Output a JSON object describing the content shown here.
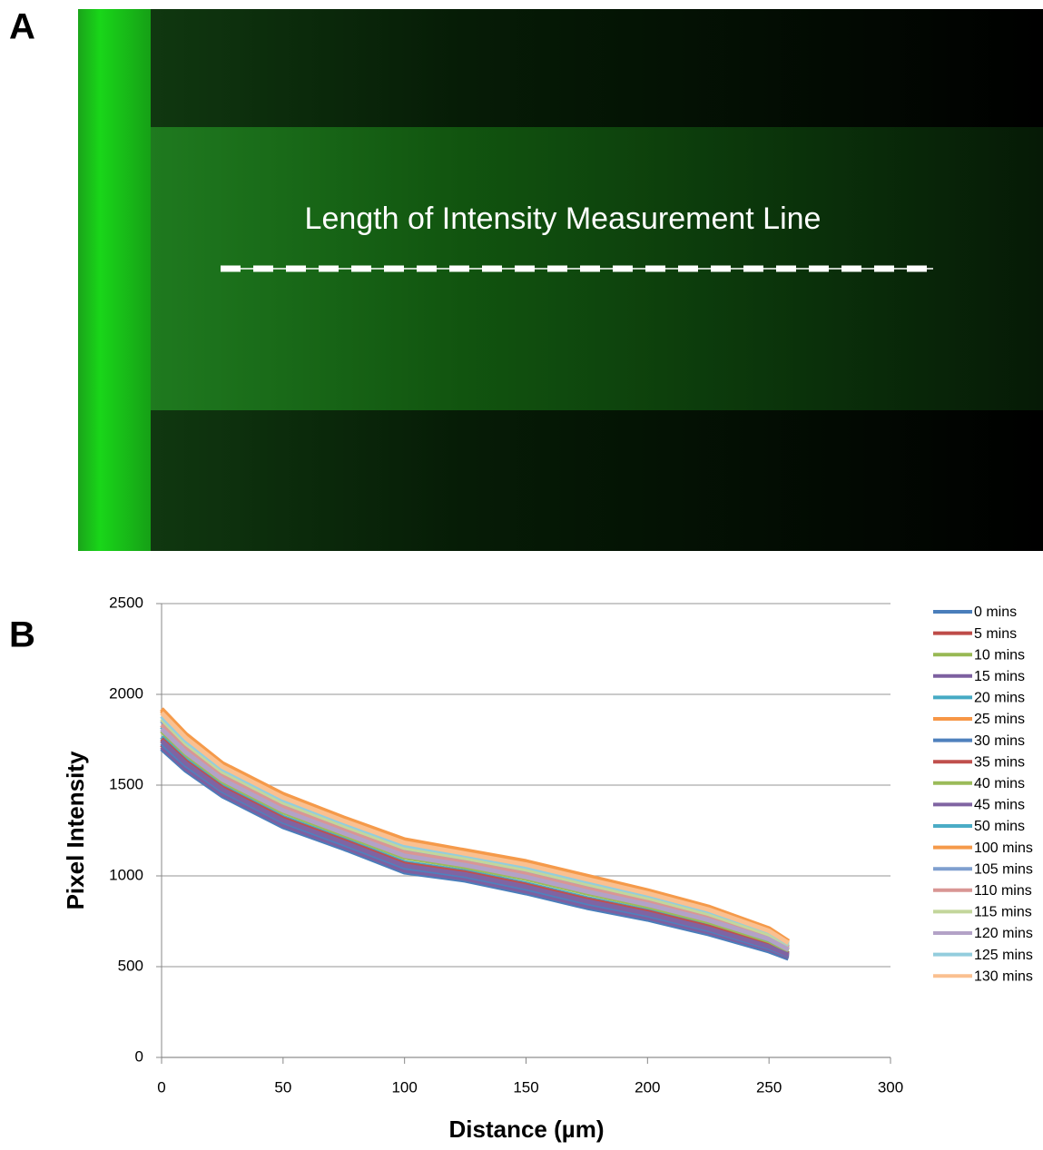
{
  "panel_a": {
    "label": "A",
    "annotation": "Length of Intensity Measurement Line"
  },
  "chart_data": {
    "type": "line",
    "panel_label": "B",
    "xlabel": "Distance (µm)",
    "ylabel": "Pixel Intensity",
    "xlim": [
      0,
      300
    ],
    "xticks": [
      0,
      50,
      100,
      150,
      200,
      250,
      300
    ],
    "ylim": [
      0,
      2500
    ],
    "yticks": [
      0,
      500,
      1000,
      1500,
      2000,
      2500
    ],
    "grid": true,
    "legend": "right",
    "x": [
      0,
      10,
      25,
      50,
      75,
      100,
      125,
      150,
      175,
      200,
      225,
      250,
      258
    ],
    "series": [
      {
        "name": "0 mins",
        "color": "#4a7ebb",
        "values": [
          1700,
          1580,
          1440,
          1270,
          1150,
          1020,
          975,
          905,
          825,
          760,
          680,
          585,
          545
        ]
      },
      {
        "name": "5 mins",
        "color": "#be4b48",
        "values": [
          1722,
          1600,
          1458,
          1288,
          1167,
          1038,
          991,
          922,
          842,
          776,
          695,
          597,
          554
        ]
      },
      {
        "name": "10 mins",
        "color": "#98b954",
        "values": [
          1744,
          1620,
          1476,
          1306,
          1184,
          1056,
          1008,
          940,
          860,
          792,
          710,
          610,
          564
        ]
      },
      {
        "name": "15 mins",
        "color": "#7d60a0",
        "values": [
          1710,
          1590,
          1450,
          1280,
          1160,
          1030,
          985,
          915,
          835,
          770,
          690,
          595,
          555
        ]
      },
      {
        "name": "20 mins",
        "color": "#46aac4",
        "values": [
          1766,
          1640,
          1494,
          1324,
          1201,
          1074,
          1025,
          957,
          877,
          808,
          725,
          622,
          573
        ]
      },
      {
        "name": "25 mins",
        "color": "#f79646",
        "values": [
          1910,
          1770,
          1612,
          1442,
          1313,
          1192,
          1133,
          1072,
          992,
          914,
          825,
          707,
          637
        ]
      },
      {
        "name": "30 mins",
        "color": "#4f81bd",
        "values": [
          1730,
          1610,
          1468,
          1298,
          1175,
          1047,
          1000,
          931,
          851,
          784,
          703,
          604,
          560
        ]
      },
      {
        "name": "35 mins",
        "color": "#c0504d",
        "values": [
          1754,
          1630,
          1486,
          1316,
          1194,
          1066,
          1018,
          950,
          870,
          802,
          720,
          620,
          570
        ]
      },
      {
        "name": "40 mins",
        "color": "#9bbb59",
        "values": [
          1799,
          1670,
          1521,
          1351,
          1226,
          1101,
          1049,
          984,
          904,
          832,
          747,
          641,
          588
        ]
      },
      {
        "name": "45 mins",
        "color": "#8064a2",
        "values": [
          1744,
          1620,
          1476,
          1306,
          1184,
          1056,
          1008,
          940,
          860,
          792,
          710,
          610,
          564
        ]
      },
      {
        "name": "50 mins",
        "color": "#4bacc6",
        "values": [
          1822,
          1690,
          1538,
          1368,
          1242,
          1118,
          1064,
          1000,
          920,
          846,
          760,
          650,
          595
        ]
      },
      {
        "name": "100 mins",
        "color": "#f59a4a",
        "values": [
          1920,
          1780,
          1620,
          1450,
          1320,
          1200,
          1140,
          1080,
          1000,
          920,
          830,
          710,
          640
        ]
      },
      {
        "name": "105 mins",
        "color": "#7f9fcf",
        "values": [
          1855,
          1720,
          1565,
          1395,
          1267,
          1145,
          1089,
          1026,
          946,
          870,
          782,
          669,
          609
        ]
      },
      {
        "name": "110 mins",
        "color": "#d99694",
        "values": [
          1832,
          1700,
          1548,
          1378,
          1252,
          1128,
          1074,
          1010,
          930,
          856,
          770,
          660,
          602
        ]
      },
      {
        "name": "115 mins",
        "color": "#c3d69b",
        "values": [
          1865,
          1730,
          1575,
          1405,
          1277,
          1155,
          1099,
          1036,
          956,
          880,
          792,
          679,
          616
        ]
      },
      {
        "name": "120 mins",
        "color": "#b3a2c7",
        "values": [
          1809,
          1680,
          1531,
          1361,
          1236,
          1111,
          1059,
          994,
          914,
          842,
          757,
          651,
          594
        ]
      },
      {
        "name": "125 mins",
        "color": "#93cddd",
        "values": [
          1880,
          1745,
          1590,
          1420,
          1292,
          1170,
          1114,
          1051,
          971,
          895,
          807,
          694,
          625
        ]
      },
      {
        "name": "130 mins",
        "color": "#fac090",
        "values": [
          1898,
          1760,
          1602,
          1432,
          1303,
          1182,
          1123,
          1062,
          982,
          904,
          815,
          697,
          630
        ]
      }
    ]
  }
}
